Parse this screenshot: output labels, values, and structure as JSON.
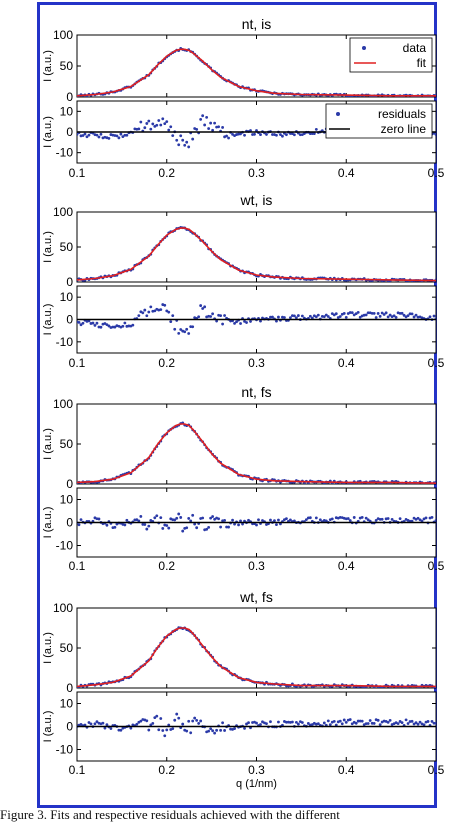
{
  "caption": "Figure 3. Fits and respective residuals achieved with the different",
  "colors": {
    "data": "#2b3aa8",
    "fit": "#e02020",
    "zero": "#000000",
    "frame": "#2433c8"
  },
  "legend": {
    "fit_panel": {
      "data": "data",
      "fit": "fit"
    },
    "residual_panel": {
      "residuals": "residuals",
      "zero": "zero line"
    }
  },
  "chart_data": [
    {
      "type": "line",
      "title": "nt, is",
      "x_ticks": [
        "0.1",
        "0.2",
        "0.3",
        "0.4",
        "0.5"
      ],
      "xlabel": "",
      "xlim": [
        0.1,
        0.5
      ],
      "fit_panel": {
        "ylabel": "I (a.u.)",
        "ylim": [
          0,
          100
        ],
        "y_ticks": [
          "0",
          "50",
          "100"
        ],
        "series": [
          {
            "name": "data",
            "style": "markers",
            "x": [
              0.1,
              0.12,
              0.14,
              0.16,
              0.18,
              0.19,
              0.2,
              0.21,
              0.215,
              0.22,
              0.225,
              0.23,
              0.24,
              0.25,
              0.26,
              0.28,
              0.3,
              0.32,
              0.35,
              0.4,
              0.45,
              0.5
            ],
            "y": [
              2,
              4,
              8,
              17,
              36,
              52,
              66,
              75,
              77,
              77,
              75,
              70,
              58,
              44,
              32,
              17,
              10,
              6,
              4,
              3,
              2,
              2
            ]
          },
          {
            "name": "fit",
            "style": "line",
            "x": [
              0.1,
              0.12,
              0.14,
              0.16,
              0.18,
              0.19,
              0.2,
              0.21,
              0.215,
              0.22,
              0.225,
              0.23,
              0.24,
              0.25,
              0.26,
              0.28,
              0.3,
              0.32,
              0.35,
              0.4,
              0.45,
              0.5
            ],
            "y": [
              2,
              4,
              8,
              17,
              36,
              52,
              66,
              75,
              77,
              77,
              75,
              70,
              58,
              44,
              32,
              17,
              10,
              6,
              4,
              3,
              2,
              2
            ]
          }
        ]
      },
      "residual_panel": {
        "ylabel": "I (a.u.)",
        "ylim": [
          -15,
          15
        ],
        "y_ticks": [
          "-10",
          "0",
          "10"
        ],
        "series": [
          {
            "name": "residuals",
            "style": "markers",
            "x": [
              0.1,
              0.12,
              0.14,
              0.16,
              0.17,
              0.18,
              0.19,
              0.2,
              0.21,
              0.22,
              0.23,
              0.24,
              0.25,
              0.26,
              0.28,
              0.3,
              0.32,
              0.35,
              0.4,
              0.45,
              0.5
            ],
            "y": [
              -1,
              -1.5,
              -2,
              -1,
              2,
              4,
              5,
              4,
              -2,
              -7,
              -1,
              5,
              4,
              0,
              -1,
              0,
              -1,
              -0.5,
              1,
              1,
              0
            ]
          },
          {
            "name": "zero line",
            "style": "line",
            "x": [
              0.1,
              0.5
            ],
            "y": [
              0,
              0
            ]
          }
        ]
      }
    },
    {
      "type": "line",
      "title": "wt, is",
      "x_ticks": [
        "0.1",
        "0.2",
        "0.3",
        "0.4",
        "0.5"
      ],
      "xlabel": "",
      "xlim": [
        0.1,
        0.5
      ],
      "fit_panel": {
        "ylabel": "I (a.u.)",
        "ylim": [
          0,
          100
        ],
        "y_ticks": [
          "0",
          "50",
          "100"
        ],
        "series": [
          {
            "name": "data",
            "style": "markers",
            "x": [
              0.1,
              0.12,
              0.14,
              0.16,
              0.18,
              0.19,
              0.2,
              0.21,
              0.215,
              0.22,
              0.225,
              0.23,
              0.24,
              0.25,
              0.26,
              0.28,
              0.3,
              0.32,
              0.35,
              0.4,
              0.45,
              0.5
            ],
            "y": [
              3,
              5,
              9,
              18,
              37,
              53,
              67,
              75,
              77,
              77,
              75,
              70,
              58,
              44,
              32,
              17,
              10,
              7,
              5,
              4,
              3,
              2
            ]
          },
          {
            "name": "fit",
            "style": "line",
            "x": [
              0.1,
              0.12,
              0.14,
              0.16,
              0.18,
              0.19,
              0.2,
              0.21,
              0.215,
              0.22,
              0.225,
              0.23,
              0.24,
              0.25,
              0.26,
              0.28,
              0.3,
              0.32,
              0.35,
              0.4,
              0.45,
              0.5
            ],
            "y": [
              3,
              5,
              9,
              18,
              37,
              53,
              67,
              75,
              77,
              77,
              75,
              70,
              58,
              44,
              32,
              17,
              10,
              7,
              5,
              4,
              3,
              2
            ]
          }
        ]
      },
      "residual_panel": {
        "ylabel": "I (a.u.)",
        "ylim": [
          -15,
          15
        ],
        "y_ticks": [
          "-10",
          "0",
          "10"
        ],
        "series": [
          {
            "name": "residuals",
            "style": "markers",
            "x": [
              0.1,
              0.12,
              0.14,
              0.16,
              0.17,
              0.18,
              0.19,
              0.2,
              0.21,
              0.22,
              0.23,
              0.24,
              0.25,
              0.26,
              0.28,
              0.3,
              0.32,
              0.35,
              0.4,
              0.45,
              0.5
            ],
            "y": [
              -1,
              -2,
              -3,
              -2,
              1,
              3,
              5,
              3,
              -2,
              -6,
              0,
              5,
              3,
              0,
              -1,
              0,
              0,
              1,
              2,
              2,
              1
            ]
          },
          {
            "name": "zero line",
            "style": "line",
            "x": [
              0.1,
              0.5
            ],
            "y": [
              0,
              0
            ]
          }
        ]
      }
    },
    {
      "type": "line",
      "title": "nt, fs",
      "x_ticks": [
        "0.1",
        "0.2",
        "0.3",
        "0.4",
        "0.5"
      ],
      "xlabel": "",
      "xlim": [
        0.1,
        0.5
      ],
      "fit_panel": {
        "ylabel": "I (a.u.)",
        "ylim": [
          0,
          100
        ],
        "y_ticks": [
          "0",
          "50",
          "100"
        ],
        "series": [
          {
            "name": "data",
            "style": "markers",
            "x": [
              0.1,
              0.12,
              0.14,
              0.16,
              0.18,
              0.19,
              0.2,
              0.21,
              0.215,
              0.22,
              0.225,
              0.23,
              0.24,
              0.25,
              0.26,
              0.28,
              0.3,
              0.32,
              0.35,
              0.4,
              0.45,
              0.5
            ],
            "y": [
              2,
              3,
              6,
              14,
              33,
              50,
              64,
              73,
              75,
              75,
              73,
              67,
              53,
              38,
              26,
              12,
              6,
              4,
              3,
              2,
              2,
              1
            ]
          },
          {
            "name": "fit",
            "style": "line",
            "x": [
              0.1,
              0.12,
              0.14,
              0.16,
              0.18,
              0.19,
              0.2,
              0.21,
              0.215,
              0.22,
              0.225,
              0.23,
              0.24,
              0.25,
              0.26,
              0.28,
              0.3,
              0.32,
              0.35,
              0.4,
              0.45,
              0.5
            ],
            "y": [
              2,
              3,
              6,
              14,
              33,
              50,
              64,
              73,
              75,
              75,
              73,
              67,
              53,
              38,
              26,
              12,
              6,
              4,
              3,
              2,
              2,
              1
            ]
          }
        ]
      },
      "residual_panel": {
        "ylabel": "I (a.u.)",
        "ylim": [
          -15,
          15
        ],
        "y_ticks": [
          "-10",
          "0",
          "10"
        ],
        "series": [
          {
            "name": "residuals",
            "style": "markers",
            "x": [
              0.1,
              0.12,
              0.14,
              0.16,
              0.17,
              0.18,
              0.19,
              0.2,
              0.21,
              0.22,
              0.23,
              0.24,
              0.25,
              0.26,
              0.28,
              0.3,
              0.32,
              0.35,
              0.4,
              0.45,
              0.5
            ],
            "y": [
              0,
              1,
              -1,
              0,
              1,
              -1,
              2,
              -2,
              3,
              -3,
              1,
              -1,
              0,
              1,
              0,
              0,
              0,
              1,
              1,
              1,
              1
            ]
          },
          {
            "name": "zero line",
            "style": "line",
            "x": [
              0.1,
              0.5
            ],
            "y": [
              0,
              0
            ]
          }
        ]
      }
    },
    {
      "type": "line",
      "title": "wt, fs",
      "x_ticks": [
        "0.1",
        "0.2",
        "0.3",
        "0.4",
        "0.5"
      ],
      "xlabel": "q (1/nm)",
      "xlim": [
        0.1,
        0.5
      ],
      "fit_panel": {
        "ylabel": "I (a.u.)",
        "ylim": [
          0,
          100
        ],
        "y_ticks": [
          "0",
          "50",
          "100"
        ],
        "series": [
          {
            "name": "data",
            "style": "markers",
            "x": [
              0.1,
              0.12,
              0.14,
              0.16,
              0.18,
              0.19,
              0.2,
              0.21,
              0.215,
              0.22,
              0.225,
              0.23,
              0.24,
              0.25,
              0.26,
              0.28,
              0.3,
              0.32,
              0.35,
              0.4,
              0.45,
              0.5
            ],
            "y": [
              2,
              4,
              7,
              15,
              34,
              51,
              65,
              73,
              75,
              75,
              73,
              67,
              53,
              39,
              27,
              13,
              7,
              5,
              3,
              3,
              2,
              2
            ]
          },
          {
            "name": "fit",
            "style": "line",
            "x": [
              0.1,
              0.12,
              0.14,
              0.16,
              0.18,
              0.19,
              0.2,
              0.21,
              0.215,
              0.22,
              0.225,
              0.23,
              0.24,
              0.25,
              0.26,
              0.28,
              0.3,
              0.32,
              0.35,
              0.4,
              0.45,
              0.5
            ],
            "y": [
              2,
              4,
              7,
              15,
              34,
              51,
              65,
              73,
              75,
              75,
              73,
              67,
              53,
              39,
              27,
              13,
              7,
              5,
              3,
              3,
              2,
              2
            ]
          }
        ]
      },
      "residual_panel": {
        "ylabel": "I (a.u.)",
        "ylim": [
          -15,
          15
        ],
        "y_ticks": [
          "-10",
          "0",
          "10"
        ],
        "series": [
          {
            "name": "residuals",
            "style": "markers",
            "x": [
              0.1,
              0.12,
              0.14,
              0.16,
              0.17,
              0.18,
              0.19,
              0.2,
              0.21,
              0.22,
              0.23,
              0.24,
              0.25,
              0.26,
              0.28,
              0.3,
              0.32,
              0.35,
              0.4,
              0.45,
              0.5
            ],
            "y": [
              0,
              1,
              0,
              -1,
              1,
              0,
              2,
              -2,
              3,
              -2,
              1,
              0,
              -1,
              0,
              0,
              1,
              1,
              1,
              2,
              2,
              1
            ]
          },
          {
            "name": "zero line",
            "style": "line",
            "x": [
              0.1,
              0.5
            ],
            "y": [
              0,
              0
            ]
          }
        ]
      }
    }
  ]
}
